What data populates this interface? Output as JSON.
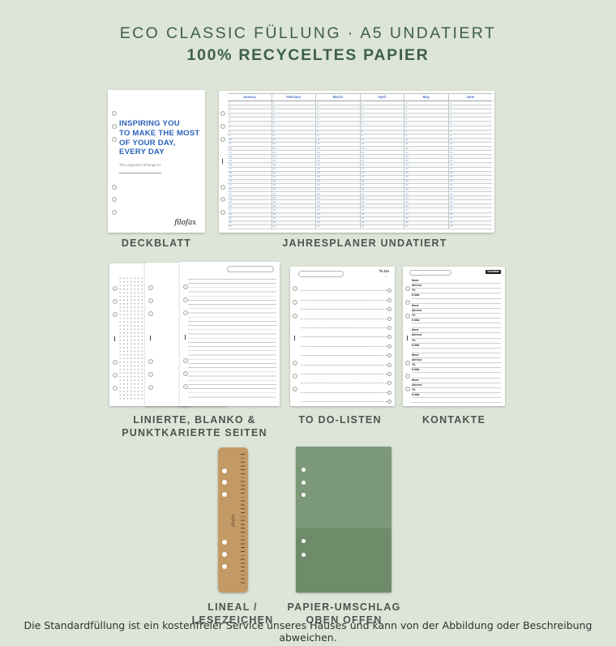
{
  "header": {
    "title": "ECO CLASSIC FÜLLUNG · A5 UNDATIERT",
    "subtitle": "100% RECYCELTES PAPIER"
  },
  "colors": {
    "background": "#dde4d8",
    "title_green": "#3d6049",
    "label_color": "#4b564f",
    "cover_blue": "#2a61ba",
    "kraft_brown": "#c39a66",
    "envelope_green_top": "#7b9878",
    "envelope_green_bottom": "#6e8b6a"
  },
  "deckblatt": {
    "caption": "DECKBLATT",
    "cover_text": [
      "INSPIRING YOU",
      "TO MAKE THE MOST",
      "OF YOUR DAY,",
      "EVERY DAY"
    ],
    "belongs_label": "The organiser belongs to:",
    "brand": "filofax"
  },
  "jahresplaner": {
    "caption": "JAHRESPLANER UNDATIERT",
    "months": [
      "January",
      "February",
      "March",
      "April",
      "May",
      "June"
    ],
    "days_per_month": 31
  },
  "seiten": {
    "caption": [
      "LINIERTE, BLANKO &",
      "PUNKTKARIERTE SEITEN"
    ]
  },
  "todo": {
    "caption": "TO DO-LISTEN",
    "page_title": "To Do",
    "check_glyph": "✓",
    "row_count": 13
  },
  "kontakte": {
    "caption": "KONTAKTE",
    "page_title": "Kontakte",
    "field_labels": [
      "Name",
      "Adresse",
      "Tel",
      "E-Mail"
    ],
    "block_count": 5
  },
  "lineal": {
    "caption": [
      "LINEAL /",
      "LESEZEICHEN"
    ],
    "brand": "filofax"
  },
  "umschlag": {
    "caption": [
      "PAPIER-UMSCHLAG",
      "OBEN OFFEN"
    ]
  },
  "footer": {
    "disclaimer": "Die Standardfüllung ist ein kostenfreier Service unseres Hauses und kann von der Abbildung oder Beschreibung abweichen."
  }
}
